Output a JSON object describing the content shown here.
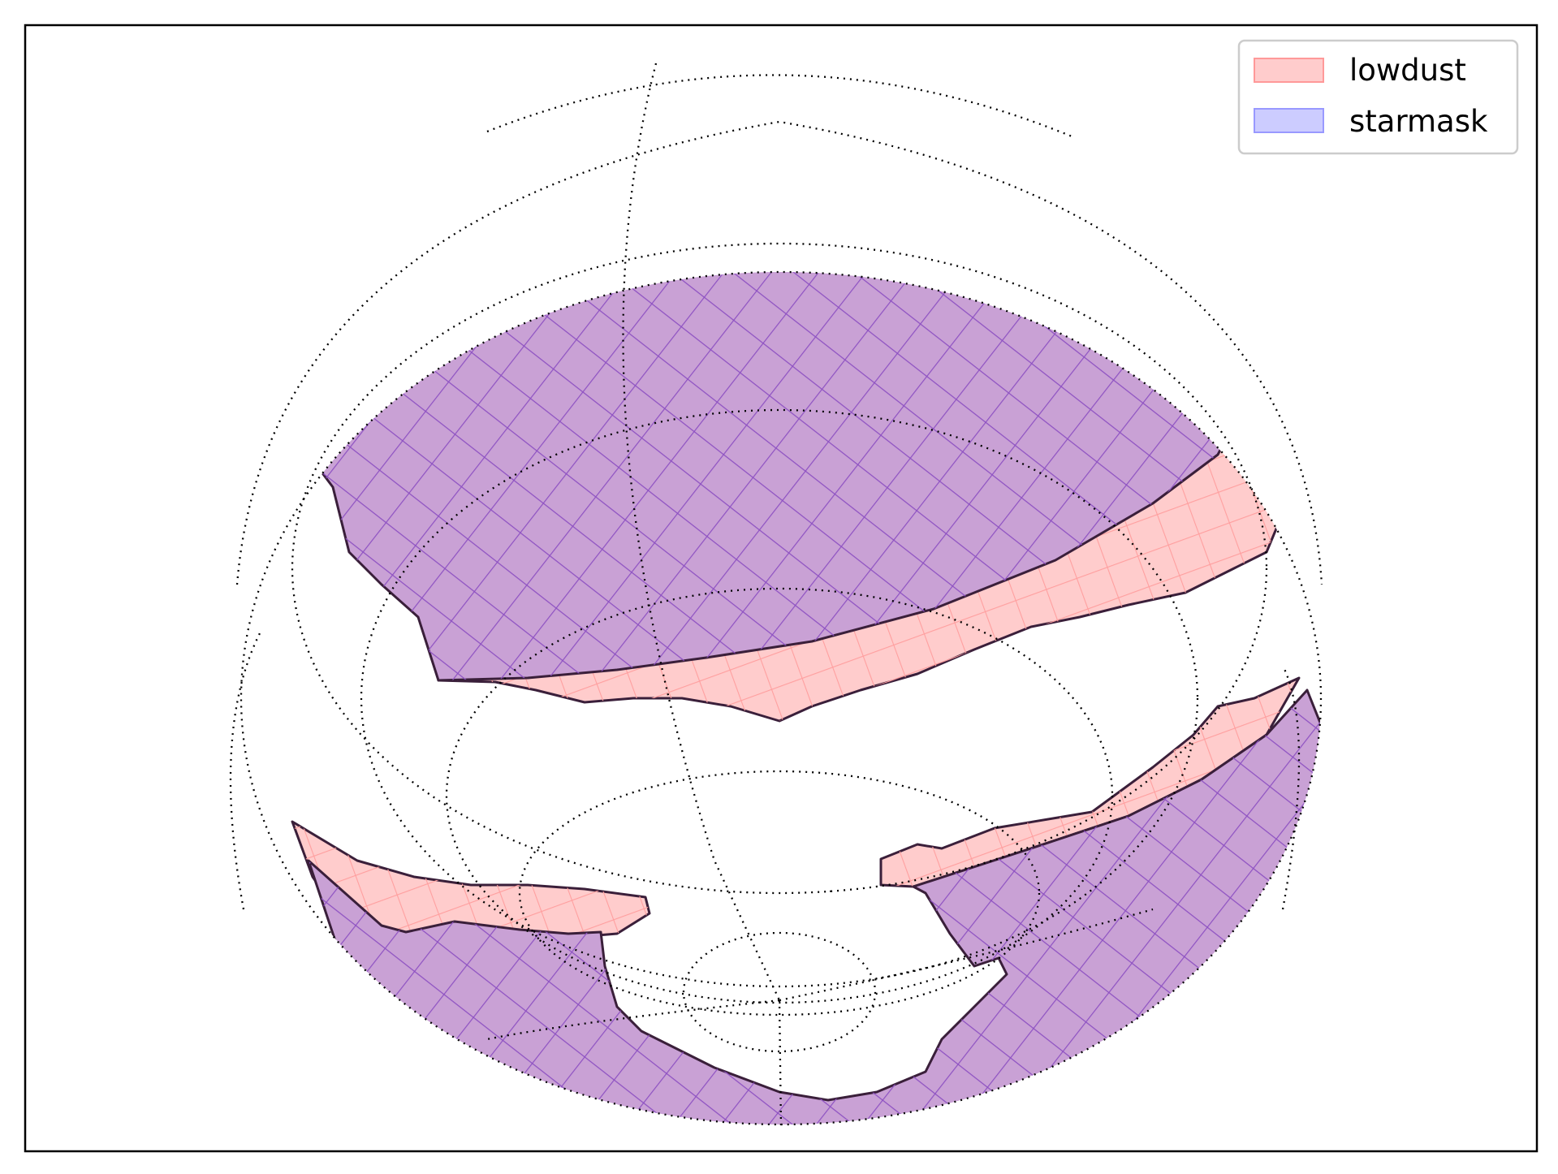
{
  "chart_data": {
    "type": "area",
    "projection": "sky-map sphere (HEALPix footprint)",
    "grid": "dotted meridians and parallels",
    "legend_position": "top-right",
    "axes_ticks": "none",
    "series": [
      {
        "name": "lowdust",
        "color": "#ff9999",
        "alpha": 0.5,
        "edgecolor": "#ff9999"
      },
      {
        "name": "starmask",
        "color": "#9999ff",
        "alpha": 0.5,
        "edgecolor": "#9999ff"
      }
    ],
    "overlap_color": "#c9a1d5",
    "boundary_color": "#3a1f3a"
  }
}
